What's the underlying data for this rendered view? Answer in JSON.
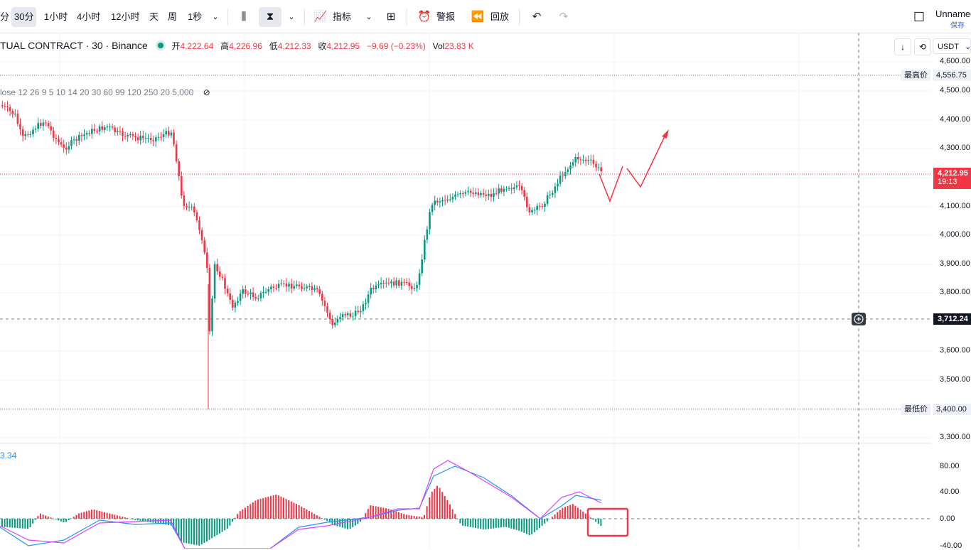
{
  "toolbar": {
    "intervals": [
      "分",
      "30分",
      "1小时",
      "4小时",
      "12小时",
      "天",
      "周",
      "1秒"
    ],
    "indicators_label": "指标",
    "alert_label": "警报",
    "replay_label": "回放",
    "layout_name": "Unnamed",
    "save_label": "保存"
  },
  "legend": {
    "symbol": "TUAL CONTRACT · 30 · Binance",
    "open_label": "开",
    "open": "4,222.64",
    "high_label": "高",
    "high": "4,226.96",
    "low_label": "低",
    "low": "4,212.33",
    "close_label": "收",
    "close": "4,212.95",
    "change": "−9.69 (−0.23%)",
    "vol_label": "Vol",
    "vol": "23.83 K"
  },
  "indicator_line": "lose 12 26 9 5 10 14 20 30 60 99 120 250 20 5,000",
  "macd_value": "3.34",
  "price_axis": {
    "currency": "USDT",
    "ticks": [
      "4,600.00",
      "4,500.00",
      "4,400.00",
      "4,300.00",
      "4,100.00",
      "4,000.00",
      "3,900.00",
      "3,800.00",
      "3,600.00",
      "3,500.00",
      "3,300.00"
    ],
    "high_label": "最高价",
    "high_value": "4,556.75",
    "low_label": "最低价",
    "low_value": "3,400.00",
    "last_price": "4,212.95",
    "countdown": "19:13",
    "crosshair_price": "3,712.24",
    "macd_ticks": [
      "80.00",
      "40.00",
      "0.00",
      "-40.00"
    ]
  },
  "colors": {
    "up": "#089981",
    "down": "#f23645",
    "macd": "#2196f3",
    "signal": "#e040fb"
  }
}
